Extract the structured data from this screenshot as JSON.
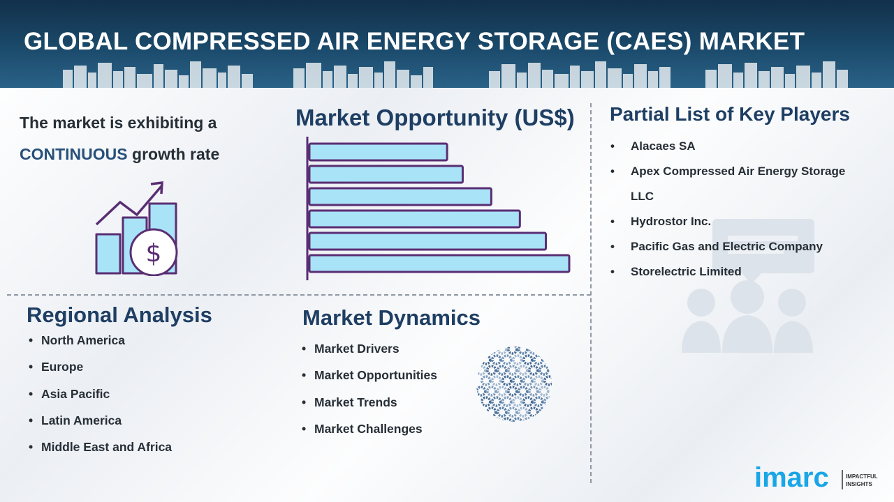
{
  "header": {
    "title": "GLOBAL COMPRESSED AIR ENERGY STORAGE (CAES) MARKET"
  },
  "growth": {
    "line1": "The market is exhibiting a",
    "highlight": "CONTINUOUS",
    "line2_rest": " growth rate",
    "icon": "growth-chart-dollar-icon"
  },
  "opportunity": {
    "title": "Market Opportunity (US$)",
    "chart_data": {
      "type": "bar",
      "orientation": "horizontal",
      "categories": [
        "",
        "",
        "",
        "",
        "",
        ""
      ],
      "values": [
        53,
        59,
        70,
        81,
        91,
        100
      ],
      "xlim": [
        0,
        100
      ],
      "grid": false,
      "bar_color": "#a9e3f7",
      "bar_border_color": "#5a2e73"
    }
  },
  "players": {
    "title": "Partial List of Key Players",
    "items": [
      "Alacaes SA",
      "Apex Compressed Air Energy Storage LLC",
      "Hydrostor Inc.",
      "Pacific Gas and Electric Company",
      "Storelectric Limited"
    ],
    "icon": "people-group-icon"
  },
  "regional": {
    "title": "Regional Analysis",
    "items": [
      "North America",
      "Europe",
      "Asia Pacific",
      "Latin America",
      "Middle East and Africa"
    ]
  },
  "dynamics": {
    "title": "Market Dynamics",
    "items": [
      "Market Drivers",
      "Market Opportunities",
      "Market Trends",
      "Market Challenges"
    ],
    "icon": "gears-globe-icon"
  },
  "logo": {
    "brand": "imarc",
    "tag_line1": "IMPACTFUL",
    "tag_line2": "INSIGHTS"
  },
  "colors": {
    "header_bg": "#1b4a6b",
    "title_blue": "#1e3e63",
    "bar_fill": "#a9e3f7",
    "bar_border": "#5a2e73",
    "logo_blue": "#1aa6e6"
  }
}
